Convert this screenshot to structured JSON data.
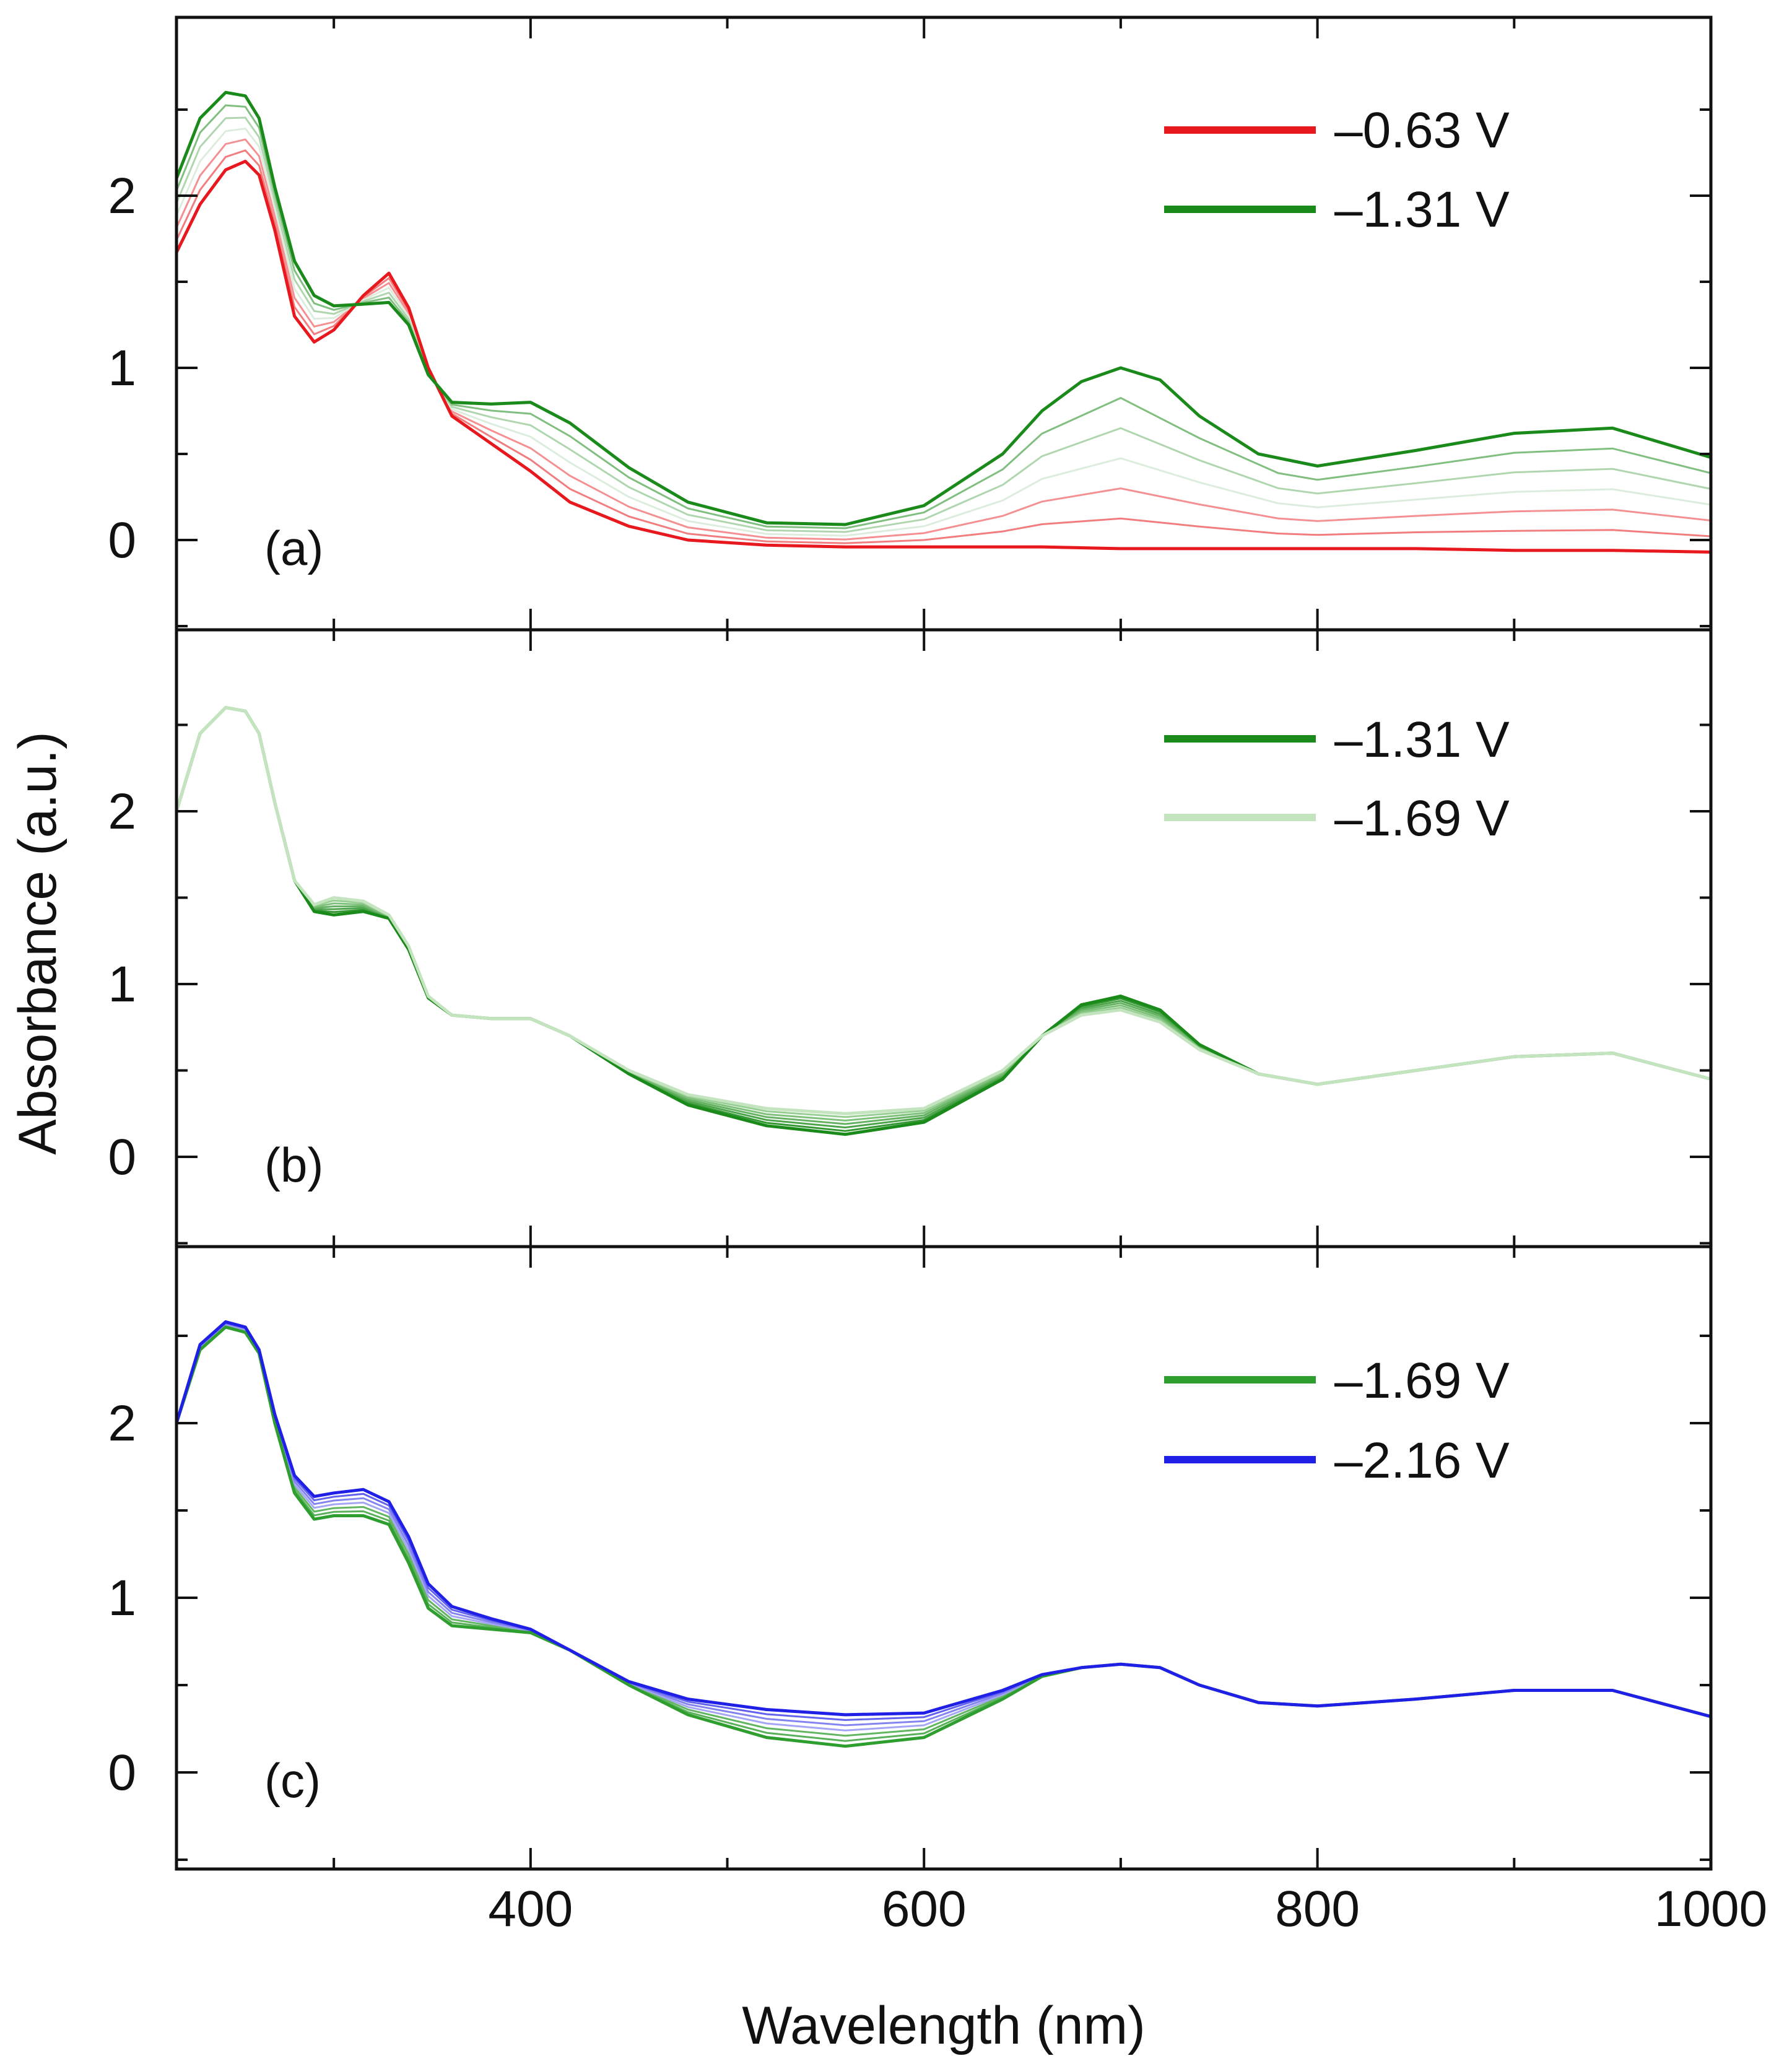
{
  "chart_data": [
    {
      "type": "line",
      "panel_label": "(a)",
      "legend": [
        {
          "label": "–0.63 V",
          "color": "#e8191e"
        },
        {
          "label": "–1.31 V",
          "color": "#1a8a1a"
        }
      ],
      "xlim": [
        220,
        1000
      ],
      "ylim": [
        -0.5,
        3.0
      ],
      "yticks": [
        0,
        1,
        2
      ],
      "ytick_labels": [
        "0",
        "1",
        "2"
      ],
      "series": [
        {
          "name": "–0.63 V",
          "color": "#e8191e",
          "x": [
            220,
            232,
            245,
            255,
            262,
            270,
            280,
            290,
            300,
            315,
            328,
            338,
            348,
            360,
            380,
            400,
            420,
            450,
            480,
            520,
            560,
            600,
            640,
            660,
            700,
            740,
            780,
            800,
            850,
            900,
            950,
            1000
          ],
          "y": [
            1.67,
            1.95,
            2.15,
            2.2,
            2.12,
            1.8,
            1.3,
            1.15,
            1.22,
            1.42,
            1.55,
            1.35,
            1.0,
            0.72,
            0.56,
            0.4,
            0.22,
            0.08,
            0.0,
            -0.03,
            -0.04,
            -0.04,
            -0.04,
            -0.04,
            -0.05,
            -0.05,
            -0.05,
            -0.05,
            -0.05,
            -0.06,
            -0.06,
            -0.07
          ]
        },
        {
          "name": "–1.31 V",
          "color": "#1a8a1a",
          "x": [
            220,
            232,
            245,
            255,
            262,
            270,
            280,
            290,
            300,
            315,
            328,
            338,
            348,
            360,
            380,
            400,
            420,
            450,
            480,
            520,
            560,
            600,
            640,
            660,
            680,
            700,
            720,
            740,
            770,
            800,
            850,
            900,
            950,
            1000
          ],
          "y": [
            2.1,
            2.45,
            2.6,
            2.58,
            2.45,
            2.05,
            1.62,
            1.42,
            1.36,
            1.37,
            1.38,
            1.25,
            0.96,
            0.8,
            0.79,
            0.8,
            0.68,
            0.42,
            0.22,
            0.1,
            0.09,
            0.2,
            0.5,
            0.75,
            0.92,
            1.0,
            0.93,
            0.72,
            0.5,
            0.43,
            0.52,
            0.62,
            0.65,
            0.48
          ]
        }
      ]
    },
    {
      "type": "line",
      "panel_label": "(b)",
      "legend": [
        {
          "label": "–1.31 V",
          "color": "#1a8a1a"
        },
        {
          "label": "–1.69 V",
          "color": "#c4e4c0"
        }
      ],
      "xlim": [
        220,
        1000
      ],
      "ylim": [
        -0.5,
        3.0
      ],
      "yticks": [
        0,
        1,
        2
      ],
      "ytick_labels": [
        "0",
        "1",
        "2"
      ],
      "series": [
        {
          "name": "–1.31 V",
          "color": "#1a8a1a",
          "x": [
            220,
            232,
            245,
            255,
            262,
            270,
            280,
            290,
            300,
            315,
            328,
            338,
            348,
            360,
            380,
            400,
            420,
            450,
            480,
            520,
            560,
            600,
            640,
            660,
            680,
            700,
            720,
            740,
            770,
            800,
            850,
            900,
            950,
            1000
          ],
          "y": [
            2.0,
            2.45,
            2.6,
            2.58,
            2.45,
            2.05,
            1.6,
            1.42,
            1.4,
            1.42,
            1.38,
            1.2,
            0.92,
            0.82,
            0.8,
            0.8,
            0.7,
            0.48,
            0.3,
            0.18,
            0.13,
            0.2,
            0.45,
            0.7,
            0.88,
            0.93,
            0.85,
            0.65,
            0.48,
            0.42,
            0.5,
            0.58,
            0.6,
            0.45
          ]
        },
        {
          "name": "–1.69 V",
          "color": "#c4e4c0",
          "x": [
            220,
            232,
            245,
            255,
            262,
            270,
            280,
            290,
            300,
            315,
            328,
            338,
            348,
            360,
            380,
            400,
            420,
            450,
            480,
            520,
            560,
            600,
            640,
            660,
            680,
            700,
            720,
            740,
            770,
            800,
            850,
            900,
            950,
            1000
          ],
          "y": [
            2.0,
            2.45,
            2.6,
            2.58,
            2.45,
            2.05,
            1.6,
            1.46,
            1.5,
            1.48,
            1.4,
            1.22,
            0.93,
            0.82,
            0.8,
            0.8,
            0.7,
            0.5,
            0.36,
            0.28,
            0.25,
            0.28,
            0.5,
            0.7,
            0.82,
            0.85,
            0.78,
            0.62,
            0.48,
            0.42,
            0.5,
            0.58,
            0.6,
            0.45
          ]
        }
      ]
    },
    {
      "type": "line",
      "panel_label": "(c)",
      "legend": [
        {
          "label": "–1.69 V",
          "color": "#2e9e2e"
        },
        {
          "label": "–2.16 V",
          "color": "#1f1fe6"
        }
      ],
      "xlim": [
        220,
        1000
      ],
      "ylim": [
        -0.5,
        3.0
      ],
      "yticks": [
        0,
        1,
        2
      ],
      "ytick_labels": [
        "0",
        "1",
        "2"
      ],
      "series": [
        {
          "name": "–1.69 V",
          "color": "#2e9e2e",
          "x": [
            220,
            232,
            245,
            255,
            262,
            270,
            280,
            290,
            300,
            315,
            328,
            338,
            348,
            360,
            380,
            400,
            420,
            450,
            480,
            520,
            560,
            600,
            640,
            660,
            680,
            700,
            720,
            740,
            770,
            800,
            850,
            900,
            950,
            1000
          ],
          "y": [
            2.0,
            2.42,
            2.55,
            2.52,
            2.4,
            2.0,
            1.6,
            1.45,
            1.47,
            1.47,
            1.42,
            1.2,
            0.94,
            0.84,
            0.82,
            0.8,
            0.7,
            0.5,
            0.33,
            0.2,
            0.15,
            0.2,
            0.42,
            0.55,
            0.6,
            0.62,
            0.6,
            0.5,
            0.4,
            0.38,
            0.42,
            0.47,
            0.47,
            0.32
          ]
        },
        {
          "name": "–2.16 V",
          "color": "#1f1fe6",
          "x": [
            220,
            232,
            245,
            255,
            262,
            270,
            280,
            290,
            300,
            315,
            328,
            338,
            348,
            360,
            380,
            400,
            420,
            450,
            480,
            520,
            560,
            600,
            640,
            660,
            680,
            700,
            720,
            740,
            770,
            800,
            850,
            900,
            950,
            1000
          ],
          "y": [
            2.0,
            2.45,
            2.58,
            2.55,
            2.42,
            2.05,
            1.7,
            1.58,
            1.6,
            1.62,
            1.55,
            1.35,
            1.08,
            0.95,
            0.88,
            0.82,
            0.7,
            0.52,
            0.42,
            0.36,
            0.33,
            0.34,
            0.47,
            0.56,
            0.6,
            0.62,
            0.6,
            0.5,
            0.4,
            0.38,
            0.42,
            0.47,
            0.47,
            0.32
          ]
        }
      ]
    }
  ],
  "xlabel": "Wavelength (nm)",
  "ylabel": "Absorbance (a.u.)",
  "xticks": [
    400,
    600,
    800,
    1000
  ],
  "xtick_labels": [
    "400",
    "600",
    "800",
    "1000"
  ]
}
